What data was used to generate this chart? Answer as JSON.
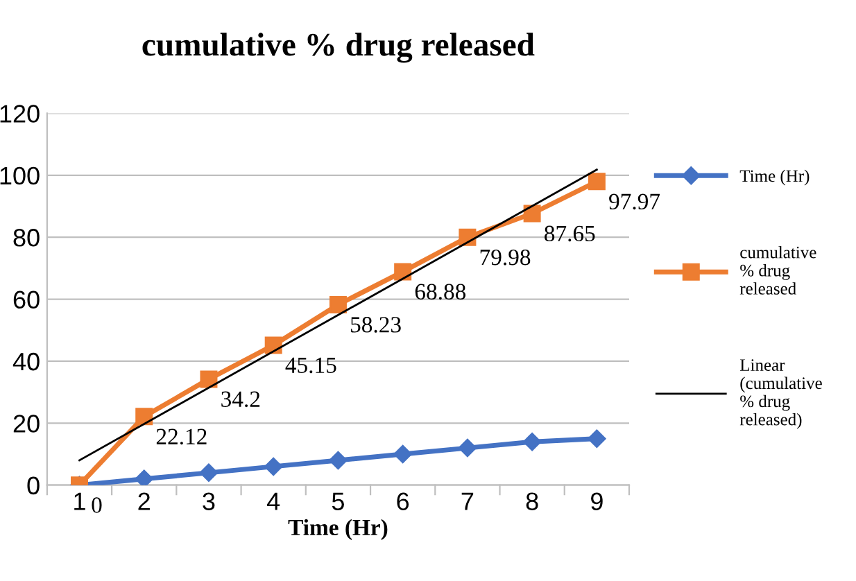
{
  "chart_data": {
    "type": "line",
    "title": "cumulative % drug released",
    "xlabel": "Time (Hr)",
    "categories": [
      "1",
      "2",
      "3",
      "4",
      "5",
      "6",
      "7",
      "8",
      "9"
    ],
    "series": [
      {
        "name": "Time (Hr)",
        "color": "#4472c4",
        "marker": "diamond",
        "values": [
          0,
          2,
          4,
          6,
          8,
          10,
          12,
          14,
          15
        ]
      },
      {
        "name": "cumulative % drug released",
        "color": "#ed7d31",
        "marker": "square",
        "values": [
          0,
          22.12,
          34.2,
          45.15,
          58.23,
          68.88,
          79.98,
          87.65,
          97.97
        ],
        "value_labels": [
          "0",
          "22.12",
          "34.2",
          "45.15",
          "58.23",
          "68.88",
          "79.98",
          "87.65",
          "97.97"
        ]
      },
      {
        "name": "Linear (cumulative % drug released)",
        "color": "#000000",
        "marker": "none",
        "x": [
          "1",
          "9"
        ],
        "values": [
          8,
          101.8
        ]
      }
    ],
    "ylim": [
      0,
      120
    ],
    "yticks": [
      0,
      20,
      40,
      60,
      80,
      100,
      120
    ],
    "grid": "y",
    "legend": "right"
  }
}
